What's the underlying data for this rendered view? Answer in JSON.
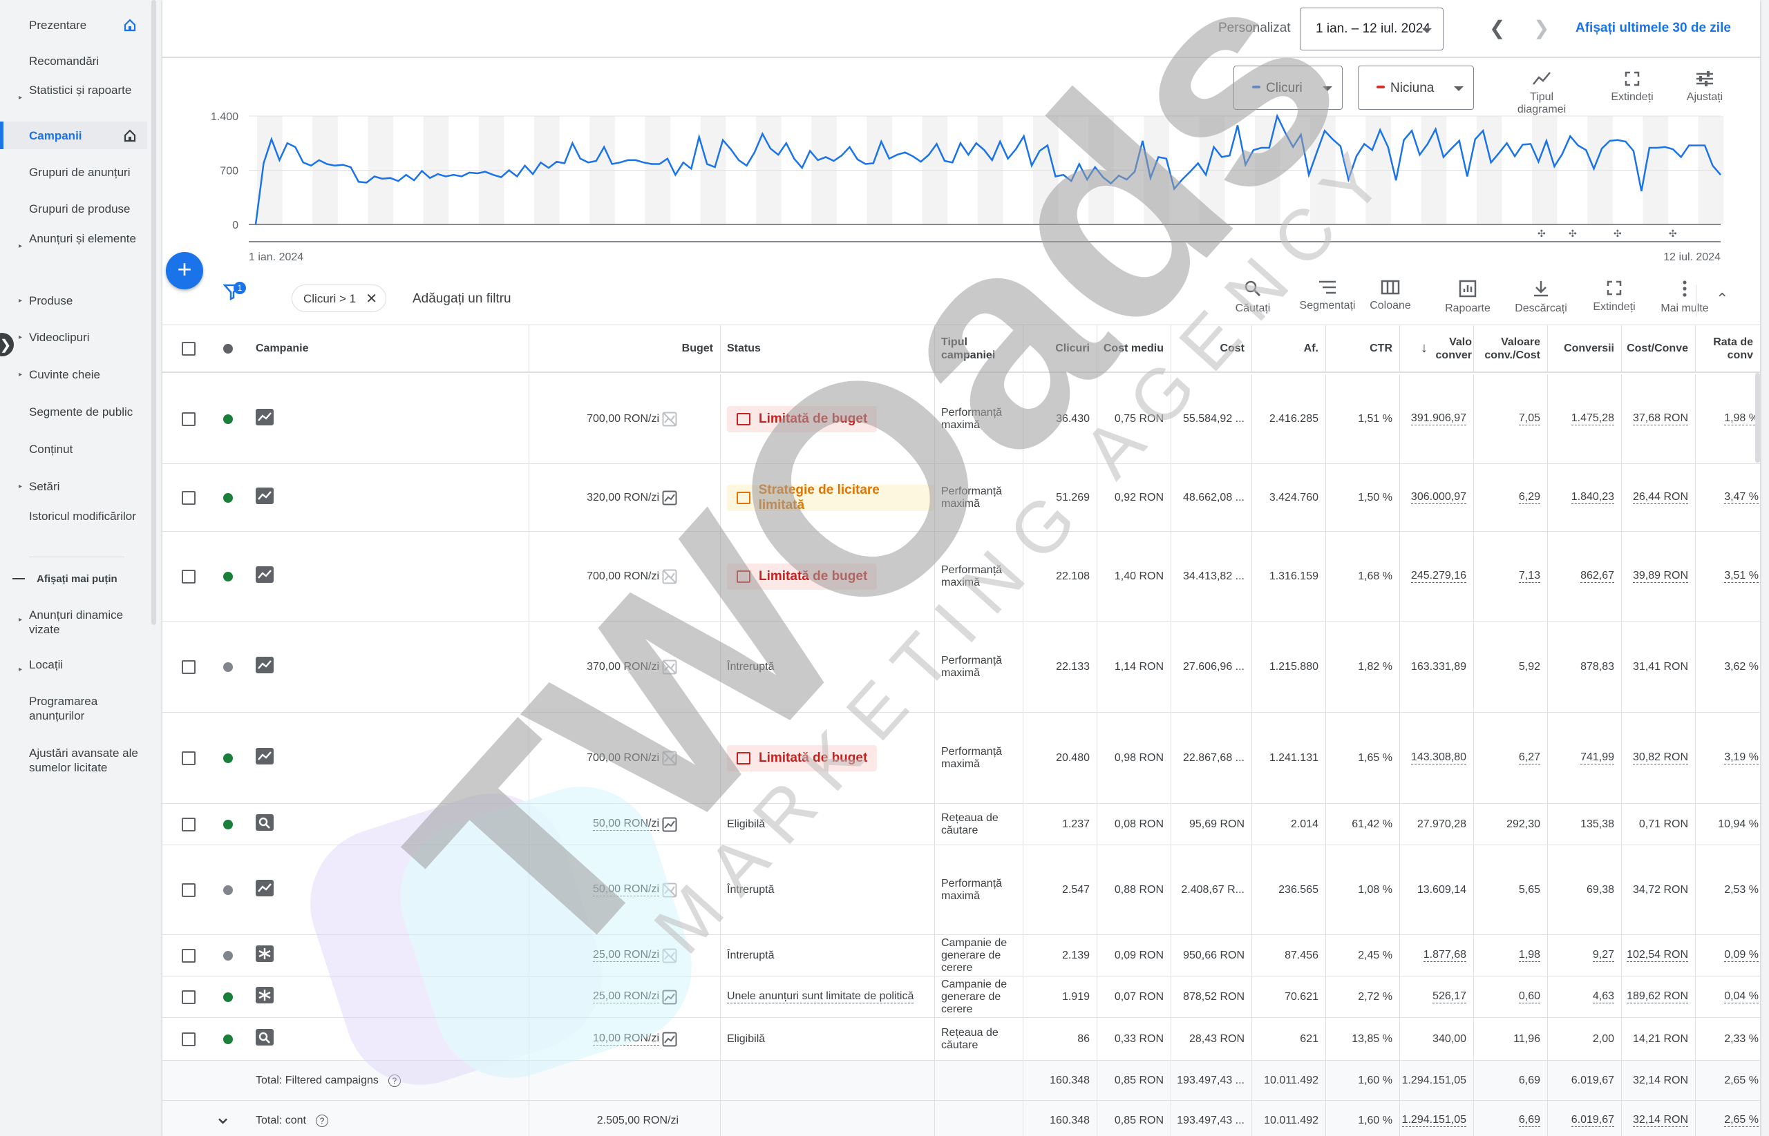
{
  "sidebar": {
    "items": [
      {
        "label": "Prezentare",
        "home": true,
        "caret": false,
        "active": false
      },
      {
        "label": "Recomandări",
        "home": false,
        "caret": false,
        "active": false
      },
      {
        "label": "Statistici și rapoarte",
        "home": false,
        "caret": true,
        "active": false
      },
      {
        "label": "Campanii",
        "home": true,
        "caret": false,
        "active": true
      },
      {
        "label": "Grupuri de anunțuri",
        "home": false,
        "caret": false,
        "active": false
      },
      {
        "label": "Grupuri de produse",
        "home": false,
        "caret": false,
        "active": false
      },
      {
        "label": "Anunțuri și elemente",
        "home": false,
        "caret": true,
        "active": false
      },
      {
        "label": "Produse",
        "home": false,
        "caret": true,
        "active": false
      },
      {
        "label": "Videoclipuri",
        "home": false,
        "caret": true,
        "active": false
      },
      {
        "label": "Cuvinte cheie",
        "home": false,
        "caret": true,
        "active": false
      },
      {
        "label": "Segmente de public",
        "home": false,
        "caret": false,
        "active": false
      },
      {
        "label": "Conținut",
        "home": false,
        "caret": false,
        "active": false
      },
      {
        "label": "Setări",
        "home": false,
        "caret": true,
        "active": false
      },
      {
        "label": "Istoricul modificărilor",
        "home": false,
        "caret": false,
        "active": false
      }
    ],
    "show_less": "Afișați mai puțin",
    "extra_items": [
      {
        "label": "Anunțuri dinamice vizate",
        "caret": true
      },
      {
        "label": "Locații",
        "caret": true
      },
      {
        "label": "Programarea anunțurilor",
        "caret": false
      },
      {
        "label": "Ajustări avansate ale sumelor licitate",
        "caret": false
      }
    ]
  },
  "topbar": {
    "custom_label": "Personalizat",
    "date_range": "1 ian. – 12 iul. 2024",
    "last30": "Afișați ultimele 30 de zile"
  },
  "chart_controls": {
    "metric1": "Clicuri",
    "metric1_color": "#1a73e8",
    "metric2": "Niciuna",
    "metric2_color": "#d93025",
    "tools": [
      "Tipul diagramei",
      "Extindeți",
      "Ajustați"
    ]
  },
  "chart_data": {
    "type": "line",
    "title": "",
    "xlabel": "",
    "ylabel": "",
    "x_start_label": "1 ian. 2024",
    "x_end_label": "12 iul. 2024",
    "yticks": [
      "1.400",
      "700",
      "0"
    ],
    "ylim": [
      0,
      1400
    ],
    "series": [
      {
        "name": "Clicuri",
        "color": "#1a73e8",
        "values": [
          0,
          790,
          1100,
          830,
          1050,
          1000,
          800,
          760,
          830,
          780,
          760,
          770,
          740,
          550,
          540,
          620,
          590,
          600,
          560,
          640,
          570,
          690,
          600,
          650,
          620,
          640,
          620,
          670,
          660,
          680,
          640,
          610,
          700,
          620,
          760,
          650,
          800,
          730,
          810,
          790,
          1050,
          850,
          800,
          820,
          1000,
          780,
          800,
          830,
          830,
          800,
          780,
          780,
          850,
          640,
          800,
          720,
          1130,
          780,
          740,
          1090,
          970,
          830,
          760,
          930,
          1170,
          980,
          900,
          1050,
          850,
          730,
          950,
          830,
          870,
          820,
          890,
          1000,
          840,
          780,
          790,
          1070,
          850,
          900,
          930,
          880,
          810,
          900,
          1040,
          820,
          800,
          1050,
          900,
          1050,
          960,
          830,
          1070,
          850,
          970,
          1140,
          760,
          950,
          1020,
          620,
          640,
          560,
          780,
          580,
          740,
          610,
          530,
          630,
          580,
          680,
          1080,
          600,
          870,
          850,
          460,
          580,
          680,
          790,
          640,
          1000,
          870,
          890,
          1280,
          770,
          960,
          990,
          990,
          1400,
          1190,
          1000,
          1160,
          640,
          930,
          1210,
          1100,
          1010,
          580,
          880,
          1040,
          960,
          1220,
          1000,
          570,
          1090,
          1210,
          900,
          1040,
          1230,
          870,
          980,
          1080,
          620,
          1100,
          1210,
          800,
          920,
          1050,
          880,
          1030,
          1040,
          810,
          1080,
          750,
          910,
          1140,
          1020,
          960,
          720,
          980,
          1080,
          1090,
          1070,
          950,
          430,
          990,
          990,
          1000,
          970,
          870,
          1020,
          1020,
          1020,
          760,
          640
        ]
      }
    ],
    "annotation_markers": 4
  },
  "filters": {
    "badge": "1",
    "chip": "Clicuri > 1",
    "add": "Adăugați un filtru",
    "tools": [
      "Căutați",
      "Segmentați",
      "Coloane",
      "Rapoarte",
      "Descărcați",
      "Extindeți",
      "Mai multe"
    ]
  },
  "table": {
    "headers": {
      "campaign": "Campanie",
      "budget": "Buget",
      "status": "Status",
      "type": "Tipul campaniei",
      "clicks": "Clicuri",
      "cpc": "Cost mediu",
      "cost": "Cost",
      "impr": "Af.",
      "ctr": "CTR",
      "conv_value": "Valo conver",
      "value_cost": "Valoare conv./Cost",
      "conversions": "Conversii",
      "cost_conv": "Cost/Conve",
      "conv_rate": "Rata de conv"
    },
    "rows": [
      {
        "dot": "green",
        "type_icon": "pmax",
        "budget": "700,00 RON/zi",
        "budget_dashed": false,
        "budget_icon": "off",
        "status": "Limitată de buget",
        "status_style": "red",
        "type": "Performanță maximă",
        "clicks": "36.430",
        "cpc": "0,75 RON",
        "cost": "55.584,92 ...",
        "impr": "2.416.285",
        "ctr": "1,51 %",
        "conv_value": "391.906,97",
        "value_cost": "7,05",
        "conversions": "1.475,28",
        "cost_conv": "37,68 RON",
        "conv_rate": "1,98 %",
        "underline": true
      },
      {
        "dot": "green",
        "type_icon": "pmax",
        "budget": "320,00 RON/zi",
        "budget_dashed": false,
        "budget_icon": "on",
        "status": "Strategie de licitare limitată",
        "status_style": "orange",
        "type": "Performanță maximă",
        "clicks": "51.269",
        "cpc": "0,92 RON",
        "cost": "48.662,08 ...",
        "impr": "3.424.760",
        "ctr": "1,50 %",
        "conv_value": "306.000,97",
        "value_cost": "6,29",
        "conversions": "1.840,23",
        "cost_conv": "26,44 RON",
        "conv_rate": "3,47 %",
        "underline": true
      },
      {
        "dot": "green",
        "type_icon": "pmax",
        "budget": "700,00 RON/zi",
        "budget_dashed": false,
        "budget_icon": "off",
        "status": "Limitată de buget",
        "status_style": "red",
        "type": "Performanță maximă",
        "clicks": "22.108",
        "cpc": "1,40 RON",
        "cost": "34.413,82 ...",
        "impr": "1.316.159",
        "ctr": "1,68 %",
        "conv_value": "245.279,16",
        "value_cost": "7,13",
        "conversions": "862,67",
        "cost_conv": "39,89 RON",
        "conv_rate": "3,51 %",
        "underline": true
      },
      {
        "dot": "grey",
        "type_icon": "pmax",
        "budget": "370,00 RON/zi",
        "budget_dashed": false,
        "budget_icon": "off",
        "status": "Întreruptă",
        "status_style": "plain",
        "type": "Performanță maximă",
        "clicks": "22.133",
        "cpc": "1,14 RON",
        "cost": "27.606,96 ...",
        "impr": "1.215.880",
        "ctr": "1,82 %",
        "conv_value": "163.331,89",
        "value_cost": "5,92",
        "conversions": "878,83",
        "cost_conv": "31,41 RON",
        "conv_rate": "3,62 %",
        "underline": false
      },
      {
        "dot": "green",
        "type_icon": "pmax",
        "budget": "700,00 RON/zi",
        "budget_dashed": false,
        "budget_icon": "off",
        "status": "Limitată de buget",
        "status_style": "red",
        "type": "Performanță maximă",
        "clicks": "20.480",
        "cpc": "0,98 RON",
        "cost": "22.867,68 ...",
        "impr": "1.241.131",
        "ctr": "1,65 %",
        "conv_value": "143.308,80",
        "value_cost": "6,27",
        "conversions": "741,99",
        "cost_conv": "30,82 RON",
        "conv_rate": "3,19 %",
        "underline": true
      },
      {
        "dot": "green",
        "type_icon": "search",
        "budget": "50,00 RON/zi",
        "budget_dashed": true,
        "budget_icon": "on",
        "status": "Eligibilă",
        "status_style": "plain",
        "type": "Rețeaua de căutare",
        "clicks": "1.237",
        "cpc": "0,08 RON",
        "cost": "95,69 RON",
        "impr": "2.014",
        "ctr": "61,42 %",
        "conv_value": "27.970,28",
        "value_cost": "292,30",
        "conversions": "135,38",
        "cost_conv": "0,71 RON",
        "conv_rate": "10,94 %",
        "underline": false
      },
      {
        "dot": "grey",
        "type_icon": "pmax",
        "budget": "50,00 RON/zi",
        "budget_dashed": true,
        "budget_icon": "off",
        "status": "Întreruptă",
        "status_style": "plain",
        "type": "Performanță maximă",
        "clicks": "2.547",
        "cpc": "0,88 RON",
        "cost": "2.408,67 R...",
        "impr": "236.565",
        "ctr": "1,08 %",
        "conv_value": "13.609,14",
        "value_cost": "5,65",
        "conversions": "69,38",
        "cost_conv": "34,72 RON",
        "conv_rate": "2,53 %",
        "underline": false
      },
      {
        "dot": "grey",
        "type_icon": "demandgen",
        "budget": "25,00 RON/zi",
        "budget_dashed": true,
        "budget_icon": "off",
        "status": "Întreruptă",
        "status_style": "plain",
        "type": "Campanie de generare de cerere",
        "clicks": "2.139",
        "cpc": "0,09 RON",
        "cost": "950,66 RON",
        "impr": "87.456",
        "ctr": "2,45 %",
        "conv_value": "1.877,68",
        "value_cost": "1,98",
        "conversions": "9,27",
        "cost_conv": "102,54 RON",
        "conv_rate": "0,09 %",
        "underline": true
      },
      {
        "dot": "green",
        "type_icon": "demandgen",
        "budget": "25,00 RON/zi",
        "budget_dashed": true,
        "budget_icon": "on",
        "status": "Unele anunțuri sunt limitate de politică",
        "status_style": "policy",
        "type": "Campanie de generare de cerere",
        "clicks": "1.919",
        "cpc": "0,07 RON",
        "cost": "878,52 RON",
        "impr": "70.621",
        "ctr": "2,72 %",
        "conv_value": "526,17",
        "value_cost": "0,60",
        "conversions": "4,63",
        "cost_conv": "189,62 RON",
        "conv_rate": "0,04 %",
        "underline": true
      },
      {
        "dot": "green",
        "type_icon": "search",
        "budget": "10,00 RON/zi",
        "budget_dashed": true,
        "budget_icon": "on",
        "status": "Eligibilă",
        "status_style": "plain",
        "type": "Rețeaua de căutare",
        "clicks": "86",
        "cpc": "0,33 RON",
        "cost": "28,43 RON",
        "impr": "621",
        "ctr": "13,85 %",
        "conv_value": "340,00",
        "value_cost": "11,96",
        "conversions": "2,00",
        "cost_conv": "14,21 RON",
        "conv_rate": "2,33 %",
        "underline": false
      }
    ],
    "totals": [
      {
        "label": "Total: Filtered campaigns",
        "budget": "",
        "clicks": "160.348",
        "cpc": "0,85 RON",
        "cost": "193.497,43 ...",
        "impr": "10.011.492",
        "ctr": "1,60 %",
        "conv_value": "1.294.151,05",
        "value_cost": "6,69",
        "conversions": "6.019,67",
        "cost_conv": "32,14 RON",
        "conv_rate": "2,65 %",
        "chevron": false,
        "underline": false
      },
      {
        "label": "Total: cont",
        "budget": "2.505,00 RON/zi",
        "clicks": "160.348",
        "cpc": "0,85 RON",
        "cost": "193.497,43 ...",
        "impr": "10.011.492",
        "ctr": "1,60 %",
        "conv_value": "1.294.151,05",
        "value_cost": "6,69",
        "conversions": "6.019,67",
        "cost_conv": "32,14 RON",
        "conv_rate": "2,65 %",
        "chevron": true,
        "underline": true
      }
    ]
  },
  "watermark": {
    "brand": "TWOads",
    "tagline": "MARKETING AGENCY"
  }
}
